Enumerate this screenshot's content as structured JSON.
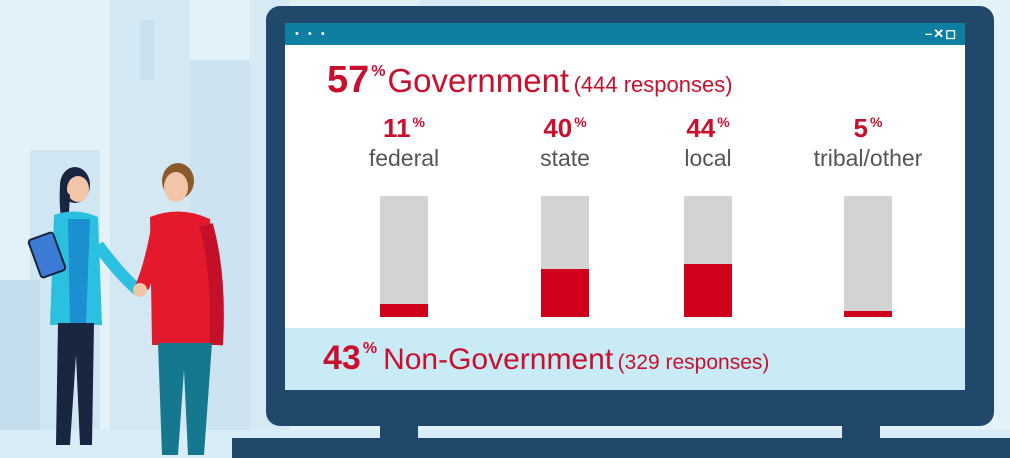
{
  "chart_data": {
    "type": "bar",
    "title": "Government",
    "title_percent": "57",
    "title_responses": "(444 responses)",
    "categories": [
      "federal",
      "state",
      "local",
      "tribal/other"
    ],
    "values": [
      11,
      40,
      44,
      5
    ],
    "value_labels": [
      "11",
      "40",
      "44",
      "5"
    ],
    "percent_symbol": "%",
    "ylim": [
      0,
      100
    ],
    "secondary": {
      "label": "Non-Government",
      "percent": "43",
      "responses": "(329 responses)"
    }
  },
  "window": {
    "dots": "• • •",
    "controls": "–✕◻"
  },
  "colors": {
    "accent_red": "#c8102e",
    "bar_fill": "#d0021b",
    "bar_track": "#d3d3d3",
    "titlebar": "#0e7fa0",
    "monitor": "#20486b",
    "footer_band": "#c9ebf6"
  }
}
